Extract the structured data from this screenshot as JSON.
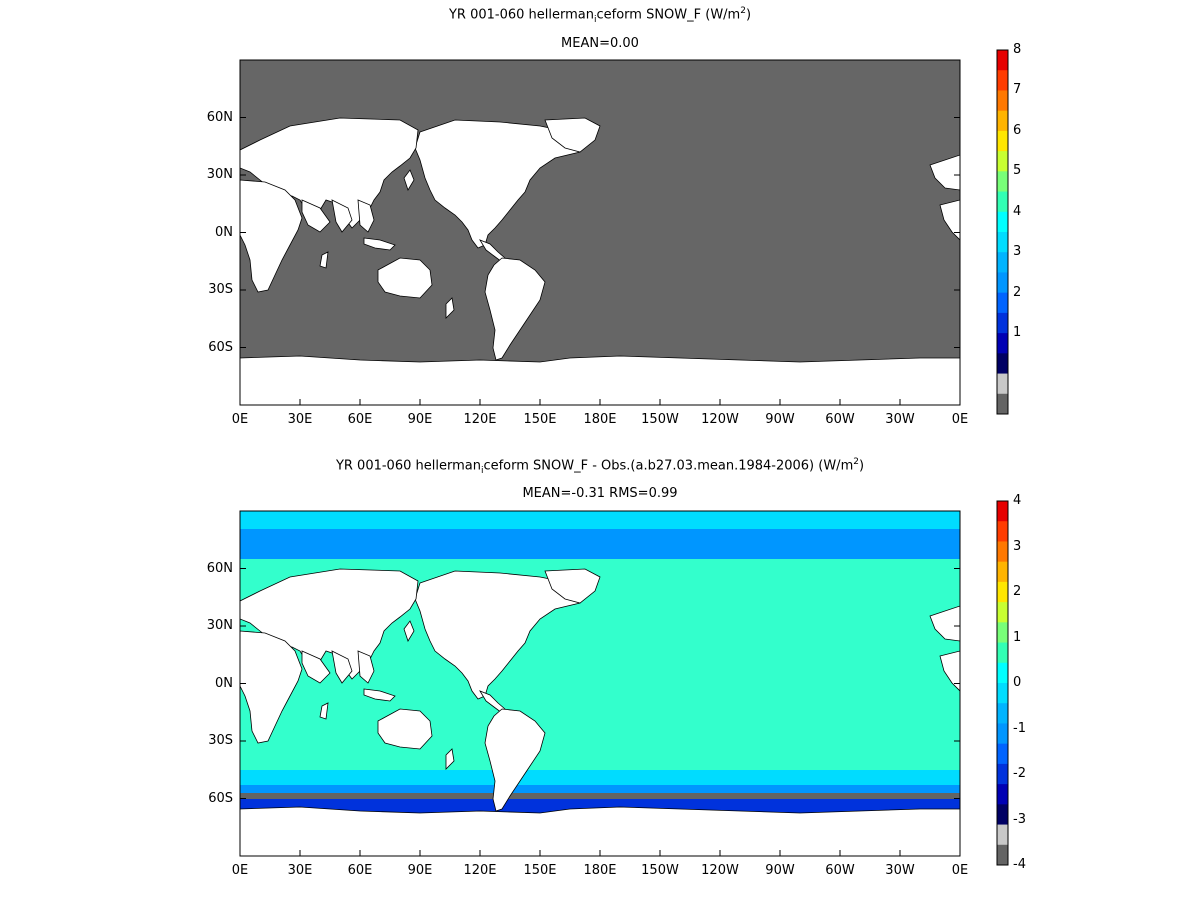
{
  "panels": [
    {
      "title_prefix": "YR 001-060 hellerman",
      "title_sub": "i",
      "title_rest": "ceform  SNOW_F (W/m",
      "title_sup": "2",
      "title_end": ")",
      "stats": "MEAN=0.00",
      "colorbar": {
        "labels": [
          "8",
          "7",
          "6",
          "5",
          "4",
          "3",
          "2",
          "1"
        ],
        "colors": [
          "#e60000",
          "#ff3c00",
          "#ff7800",
          "#ffb400",
          "#ffe600",
          "#c8ff32",
          "#78ff78",
          "#32ffb4",
          "#00ffff",
          "#00dcff",
          "#00b4ff",
          "#0096ff",
          "#0064ff",
          "#0032dc",
          "#0000b4",
          "#000064",
          "#c8c8c8",
          "#646464"
        ]
      },
      "ocean_color": "#666666"
    },
    {
      "title_prefix": "YR 001-060 hellerman",
      "title_sub": "i",
      "title_rest": "ceform SNOW_F - Obs.(a.b27.03.mean.1984-2006) (W/m",
      "title_sup": "2",
      "title_end": ")",
      "stats": "MEAN=-0.31 RMS=0.99",
      "colorbar": {
        "labels": [
          "4",
          "3",
          "2",
          "1",
          "0",
          "-1",
          "-2",
          "-3",
          "-4"
        ],
        "colors": [
          "#e60000",
          "#ff3c00",
          "#ff7800",
          "#ffb400",
          "#ffe600",
          "#c8ff32",
          "#78ff78",
          "#32ffb4",
          "#00ffff",
          "#00dcff",
          "#00b4ff",
          "#0096ff",
          "#0064ff",
          "#0032dc",
          "#0000b4",
          "#000064",
          "#c8c8c8",
          "#646464"
        ]
      },
      "ocean_color": "#33ffcc"
    }
  ],
  "lat_labels": [
    "60N",
    "30N",
    "0N",
    "30S",
    "60S"
  ],
  "lon_labels": [
    "0E",
    "30E",
    "60E",
    "90E",
    "120E",
    "150E",
    "180E",
    "150W",
    "120W",
    "90W",
    "60W",
    "30W",
    "0E"
  ]
}
